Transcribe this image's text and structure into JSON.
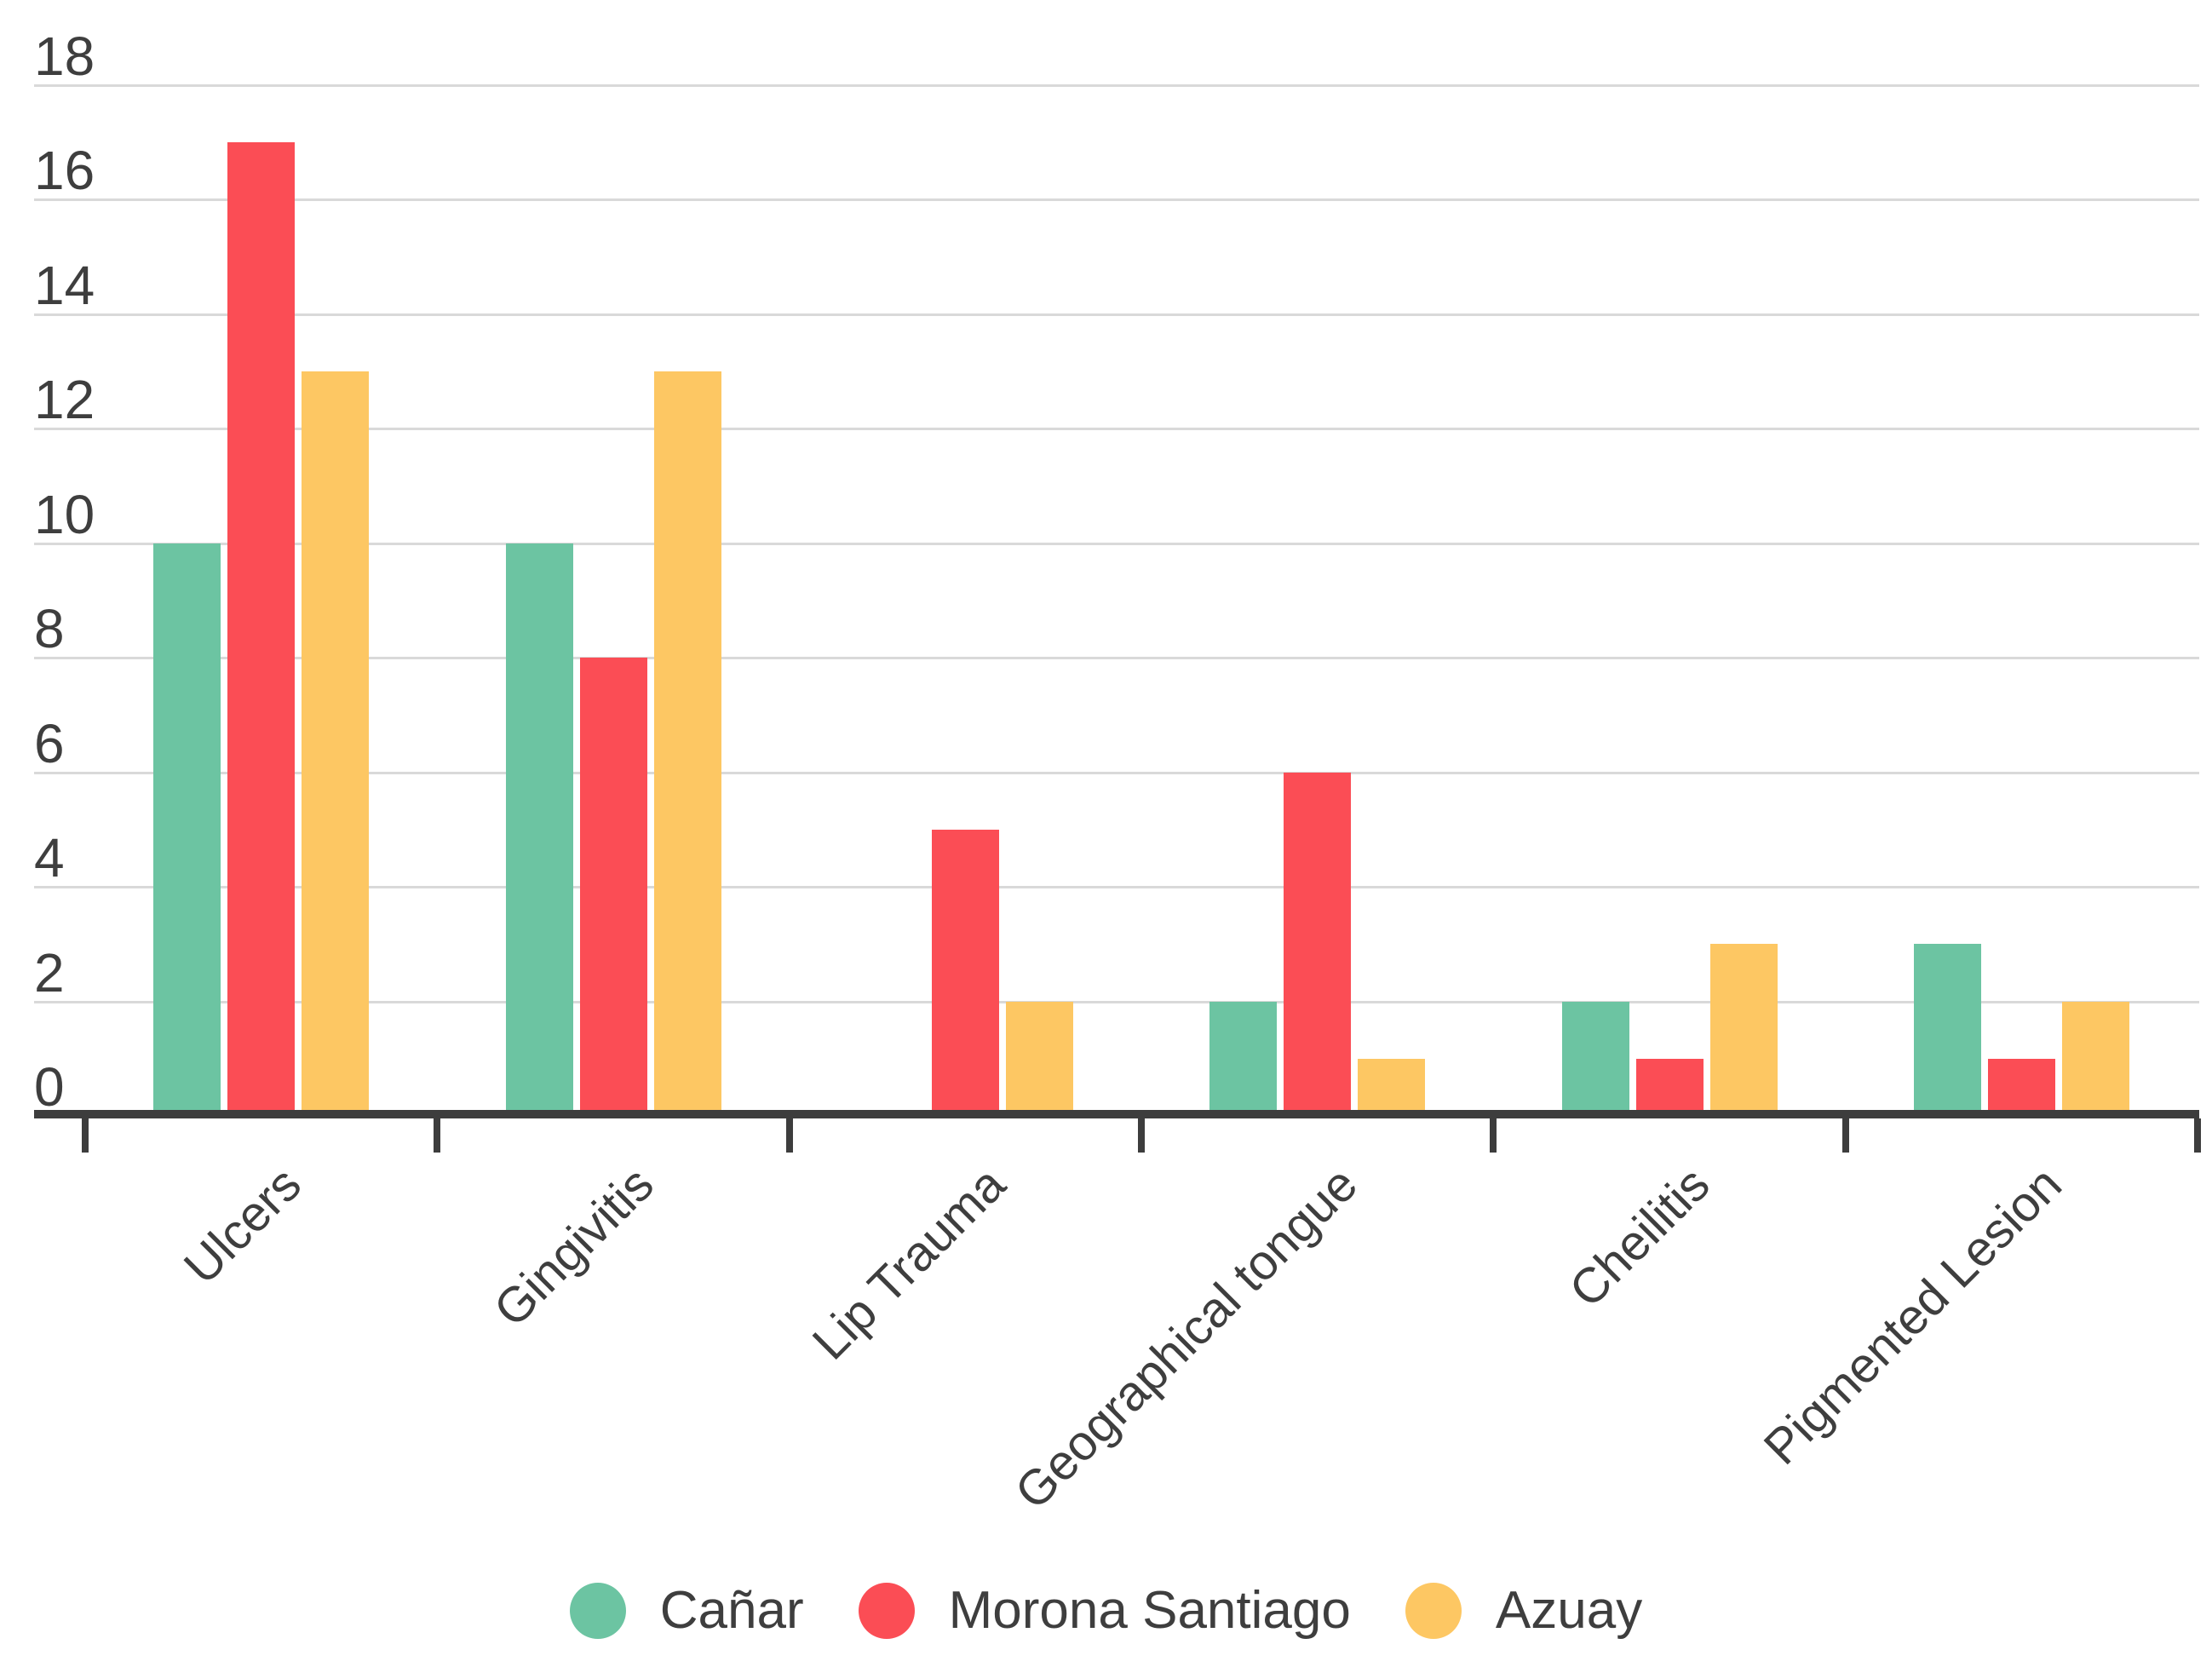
{
  "chart_data": {
    "type": "bar",
    "title": "",
    "xlabel": "",
    "ylabel": "",
    "bar_orientation": "vertical-grouped",
    "categories": [
      "Ulcers",
      "Gingivitis",
      "Lip Trauma",
      "Geographical tongue",
      "Cheilitis",
      "Pigmented Lesion"
    ],
    "series": [
      {
        "name": "Cañar",
        "color": "#6CC4A2",
        "values": [
          10,
          10,
          0,
          2,
          2,
          3
        ]
      },
      {
        "name": "Morona Santiago",
        "color": "#FB4D55",
        "values": [
          17,
          8,
          5,
          6,
          1,
          1
        ]
      },
      {
        "name": "Azuay",
        "color": "#FDC763",
        "values": [
          13,
          13,
          2,
          1,
          3,
          2
        ]
      }
    ],
    "ylim": [
      0,
      18
    ],
    "ytick_step": 2,
    "yticks": [
      "0",
      "2",
      "4",
      "6",
      "8",
      "10",
      "12",
      "14",
      "16",
      "18"
    ],
    "grid": "horizontal",
    "legend_position": "bottom",
    "x_label_rotation_deg": -45
  },
  "colors": {
    "background": "#FFFFFF",
    "gridline": "#D9D9D9",
    "axis_line": "#3D3D3D",
    "tick": "#3D3D3D",
    "text": "#3E3E3E"
  }
}
